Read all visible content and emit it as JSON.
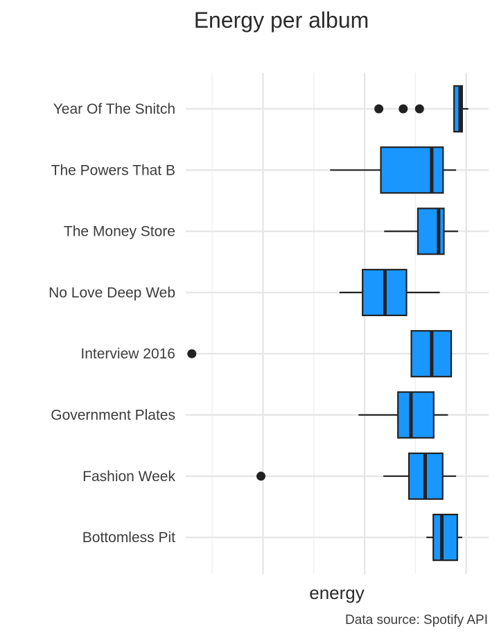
{
  "chart_data": {
    "type": "boxplot",
    "title": "Energy per album",
    "xlabel": "energy",
    "ylabel": "",
    "caption": "Data source: Spotify API",
    "xlim": [
      0.185,
      0.93
    ],
    "grid": true,
    "x_tick_labels_shown": false,
    "box_fill": "#1a97ff",
    "box_stroke": "#222222",
    "categories": [
      "Year Of The Snitch",
      "The Powers That B",
      "The Money Store",
      "No Love Deep Web",
      "Interview 2016",
      "Government Plates",
      "Fashion Week",
      "Bottomless Pit"
    ],
    "series": [
      {
        "category": "Year Of The Snitch",
        "whisker_low": 0.845,
        "q1": 0.845,
        "median": 0.86,
        "q3": 0.865,
        "whisker_high": 0.88,
        "outliers": [
          0.66,
          0.72,
          0.76
        ]
      },
      {
        "category": "The Powers That B",
        "whisker_low": 0.54,
        "q1": 0.665,
        "median": 0.79,
        "q3": 0.818,
        "whisker_high": 0.85,
        "outliers": []
      },
      {
        "category": "The Money Store",
        "whisker_low": 0.673,
        "q1": 0.756,
        "median": 0.807,
        "q3": 0.82,
        "whisker_high": 0.855,
        "outliers": []
      },
      {
        "category": "No Love Deep Web",
        "whisker_low": 0.563,
        "q1": 0.62,
        "median": 0.675,
        "q3": 0.728,
        "whisker_high": 0.81,
        "outliers": []
      },
      {
        "category": "Interview 2016",
        "whisker_low": 0.74,
        "q1": 0.74,
        "median": 0.79,
        "q3": 0.838,
        "whisker_high": 0.84,
        "outliers": [
          0.2
        ]
      },
      {
        "category": "Government Plates",
        "whisker_low": 0.61,
        "q1": 0.707,
        "median": 0.739,
        "q3": 0.795,
        "whisker_high": 0.83,
        "outliers": []
      },
      {
        "category": "Fashion Week",
        "whisker_low": 0.671,
        "q1": 0.734,
        "median": 0.774,
        "q3": 0.817,
        "whisker_high": 0.85,
        "outliers": [
          0.37
        ]
      },
      {
        "category": "Bottomless Pit",
        "whisker_low": 0.777,
        "q1": 0.794,
        "median": 0.815,
        "q3": 0.853,
        "whisker_high": 0.865,
        "outliers": []
      }
    ]
  }
}
